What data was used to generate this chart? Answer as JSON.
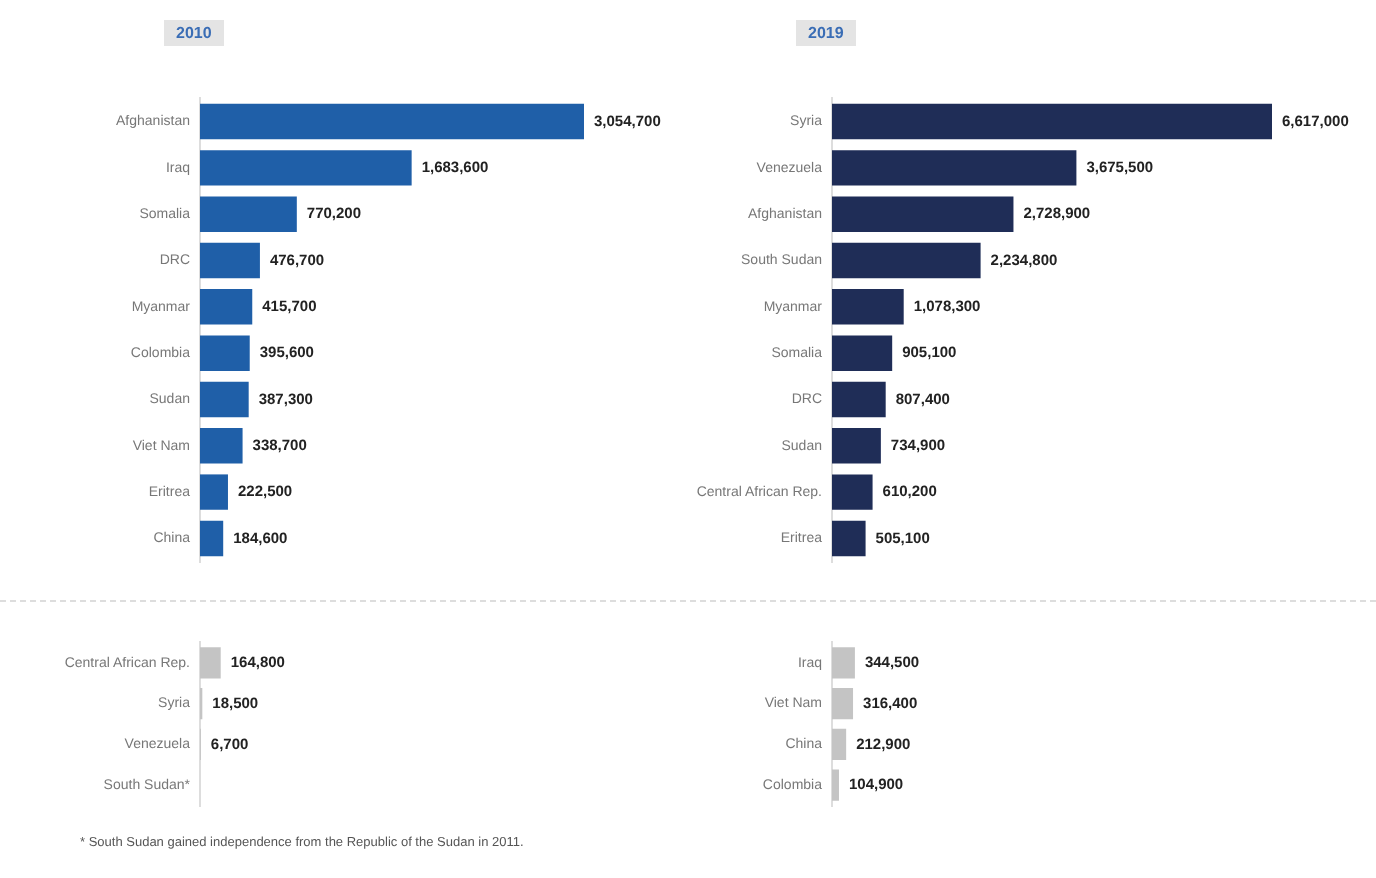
{
  "chart_data": [
    {
      "type": "bar",
      "orientation": "horizontal",
      "title": "2010",
      "categories": [
        "Afghanistan",
        "Iraq",
        "Somalia",
        "DRC",
        "Myanmar",
        "Colombia",
        "Sudan",
        "Viet Nam",
        "Eritrea",
        "China"
      ],
      "values": [
        3054700,
        1683600,
        770200,
        476700,
        415700,
        395600,
        387300,
        338700,
        222500,
        184600
      ],
      "value_labels": [
        "3,054,700",
        "1,683,600",
        "770,200",
        "476,700",
        "415,700",
        "395,600",
        "387,300",
        "338,700",
        "222,500",
        "184,600"
      ],
      "color": "#1f5fa8",
      "tick_labels": "y",
      "grid": false
    },
    {
      "type": "bar",
      "orientation": "horizontal",
      "categories": [
        "Central African Rep.",
        "Syria",
        "Venezuela",
        "South Sudan*"
      ],
      "values": [
        164800,
        18500,
        6700,
        null
      ],
      "value_labels": [
        "164,800",
        "18,500",
        "6,700",
        null
      ],
      "color": "#c4c4c4",
      "tick_labels": "y",
      "grid": false,
      "annotations": [
        "* South Sudan gained independence from the Republic of the Sudan in 2011."
      ]
    },
    {
      "type": "bar",
      "orientation": "horizontal",
      "title": "2019",
      "categories": [
        "Syria",
        "Venezuela",
        "Afghanistan",
        "South Sudan",
        "Myanmar",
        "Somalia",
        "DRC",
        "Sudan",
        "Central African Rep.",
        "Eritrea"
      ],
      "values": [
        6617000,
        3675500,
        2728900,
        2234800,
        1078300,
        905100,
        807400,
        734900,
        610200,
        505100
      ],
      "value_labels": [
        "6,617,000",
        "3,675,500",
        "2,728,900",
        "2,234,800",
        "1,078,300",
        "905,100",
        "807,400",
        "734,900",
        "610,200",
        "505,100"
      ],
      "color": "#1f2d57",
      "tick_labels": "y",
      "grid": false
    },
    {
      "type": "bar",
      "orientation": "horizontal",
      "categories": [
        "Iraq",
        "Viet Nam",
        "China",
        "Colombia"
      ],
      "values": [
        344500,
        316400,
        212900,
        104900
      ],
      "value_labels": [
        "344,500",
        "316,400",
        "212,900",
        "104,900"
      ],
      "color": "#c4c4c4",
      "tick_labels": "y",
      "grid": false
    }
  ]
}
